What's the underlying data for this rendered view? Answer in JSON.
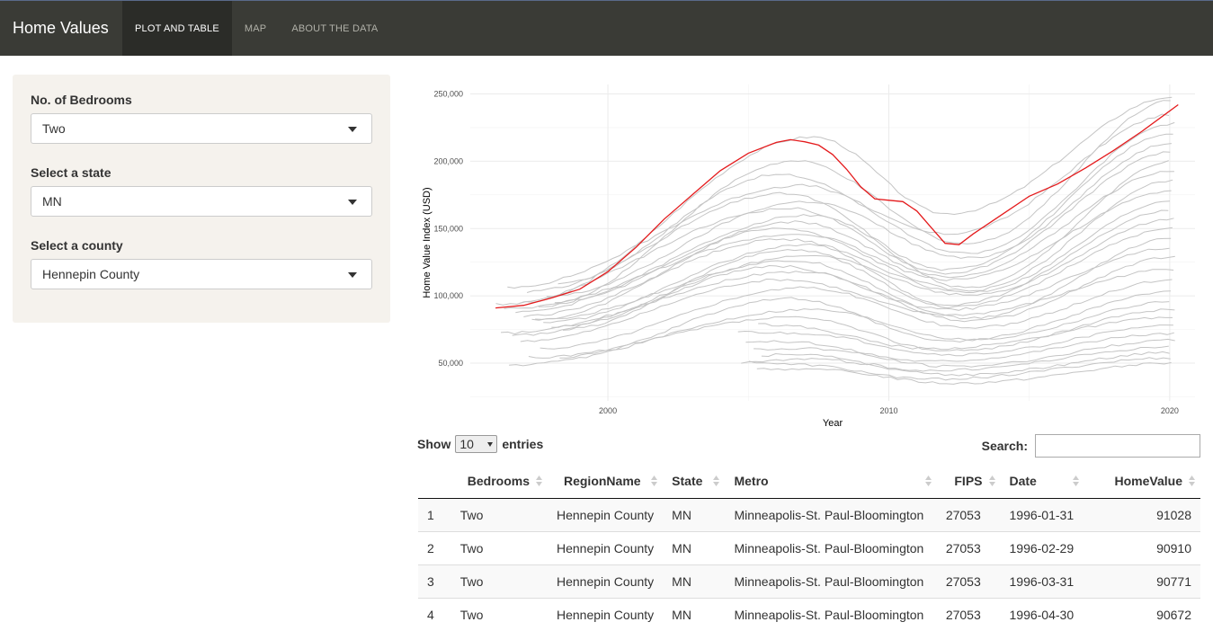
{
  "navbar": {
    "brand": "Home Values",
    "tabs": [
      {
        "label": "PLOT AND TABLE",
        "active": true
      },
      {
        "label": "MAP",
        "active": false
      },
      {
        "label": "ABOUT THE DATA",
        "active": false
      }
    ]
  },
  "sidebar": {
    "bedrooms": {
      "label": "No. of Bedrooms",
      "value": "Two"
    },
    "state": {
      "label": "Select a state",
      "value": "MN"
    },
    "county": {
      "label": "Select a county",
      "value": "Hennepin County"
    }
  },
  "chart_data": {
    "type": "line",
    "xlabel": "Year",
    "ylabel": "Home Value Index (USD)",
    "xlim": [
      1995.1,
      2020.9
    ],
    "ylim": [
      22000,
      257000
    ],
    "xticks": [
      2000,
      2010,
      2020
    ],
    "yticks": [
      50000,
      100000,
      150000,
      200000,
      250000
    ],
    "ytick_labels": [
      "50,000",
      "100,000",
      "150,000",
      "200,000",
      "250,000"
    ],
    "grid": true,
    "colors": {
      "highlight": "#e41a1c",
      "other": "#c4c4c4",
      "grid": "#ebebeb"
    },
    "highlight_series": {
      "x": [
        1996.0,
        1997.0,
        1998.0,
        1999.0,
        2000.0,
        2001.0,
        2002.0,
        2003.0,
        2004.0,
        2005.0,
        2006.0,
        2006.5,
        2007.0,
        2007.5,
        2008.0,
        2008.5,
        2009.0,
        2009.5,
        2010.0,
        2010.5,
        2011.0,
        2011.5,
        2012.0,
        2012.5,
        2013.0,
        2014.0,
        2015.0,
        2016.0,
        2017.0,
        2018.0,
        2019.0,
        2020.3
      ],
      "y": [
        91028,
        93000,
        98500,
        105000,
        118000,
        136000,
        157000,
        175000,
        193000,
        206000,
        214000,
        216000,
        214500,
        212000,
        205000,
        194000,
        181000,
        172000,
        171000,
        170000,
        163000,
        151000,
        139000,
        138000,
        146000,
        160000,
        174000,
        183000,
        195000,
        208000,
        222000,
        242000
      ]
    },
    "other_series": [
      {
        "peak": 218000,
        "end": 248000
      },
      {
        "peak": 200000,
        "end": 246000
      },
      {
        "peak": 190000,
        "end": 235000
      },
      {
        "peak": 182000,
        "end": 228000
      },
      {
        "peak": 176000,
        "end": 221000
      },
      {
        "peak": 170000,
        "end": 214000
      },
      {
        "peak": 165000,
        "end": 207000
      },
      {
        "peak": 160000,
        "end": 200000
      },
      {
        "peak": 155000,
        "end": 193000
      },
      {
        "peak": 150000,
        "end": 186000
      },
      {
        "peak": 146000,
        "end": 178000
      },
      {
        "peak": 142000,
        "end": 171000
      },
      {
        "peak": 138000,
        "end": 164000
      },
      {
        "peak": 134000,
        "end": 157000
      },
      {
        "peak": 130000,
        "end": 150000
      },
      {
        "peak": 126000,
        "end": 143000
      },
      {
        "peak": 122000,
        "end": 136000
      },
      {
        "peak": 118000,
        "end": 129000
      },
      {
        "peak": 112000,
        "end": 120000
      },
      {
        "peak": 106000,
        "end": 112000
      },
      {
        "peak": 98000,
        "end": 103000
      },
      {
        "peak": 90000,
        "end": 96000
      },
      {
        "peak": 84000,
        "end": 90000
      },
      {
        "peak": 78000,
        "end": 84000
      },
      {
        "peak": 72000,
        "end": 78000
      },
      {
        "peak": 66000,
        "end": 72000
      },
      {
        "peak": 61000,
        "end": 67000
      },
      {
        "peak": 57000,
        "end": 62000
      },
      {
        "peak": 53000,
        "end": 58000
      },
      {
        "peak": 49000,
        "end": 54000
      },
      {
        "peak": 45000,
        "end": 50000
      }
    ]
  },
  "table_controls": {
    "show_label": "Show",
    "entries_value": "10",
    "entries_label": "entries",
    "search_label": "Search:"
  },
  "table": {
    "headers": [
      "",
      "Bedrooms",
      "RegionName",
      "State",
      "Metro",
      "FIPS",
      "Date",
      "HomeValue"
    ],
    "rows": [
      [
        "1",
        "Two",
        "Hennepin County",
        "MN",
        "Minneapolis-St. Paul-Bloomington",
        "27053",
        "1996-01-31",
        "91028"
      ],
      [
        "2",
        "Two",
        "Hennepin County",
        "MN",
        "Minneapolis-St. Paul-Bloomington",
        "27053",
        "1996-02-29",
        "90910"
      ],
      [
        "3",
        "Two",
        "Hennepin County",
        "MN",
        "Minneapolis-St. Paul-Bloomington",
        "27053",
        "1996-03-31",
        "90771"
      ],
      [
        "4",
        "Two",
        "Hennepin County",
        "MN",
        "Minneapolis-St. Paul-Bloomington",
        "27053",
        "1996-04-30",
        "90672"
      ]
    ]
  }
}
